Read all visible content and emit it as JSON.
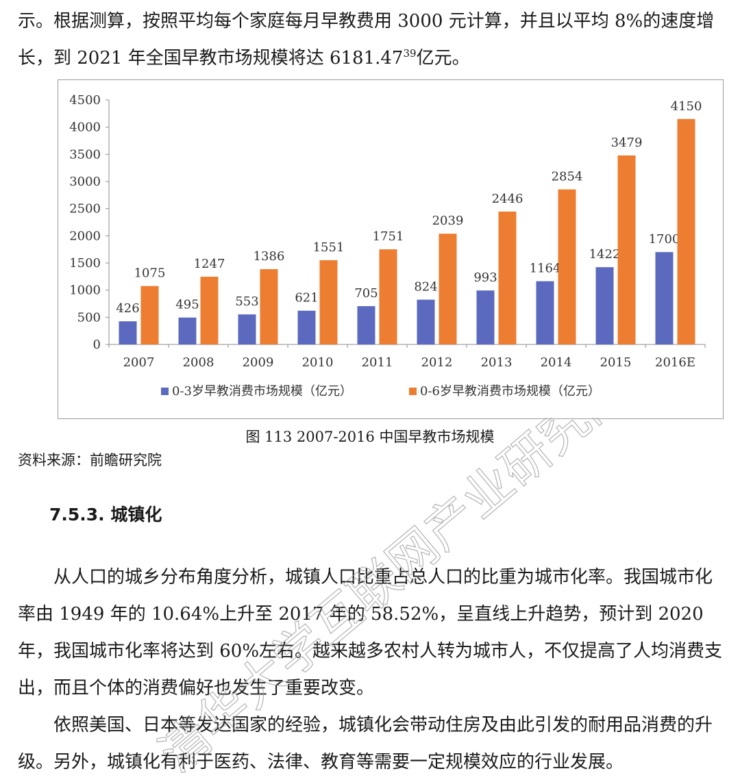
{
  "intro": {
    "text_before_sup": "示。根据测算，按照平均每个家庭每月早教费用 3000 元计算，并且以平均 8%的速度增长，到 2021 年全国早教市场规模将达 6181.47",
    "footnote_ref": "39",
    "text_after_sup": "亿元。"
  },
  "chart_data": {
    "type": "bar",
    "categories": [
      "2007",
      "2008",
      "2009",
      "2010",
      "2011",
      "2012",
      "2013",
      "2014",
      "2015",
      "2016E"
    ],
    "series": [
      {
        "name": "0-3岁早教消费市场规模（亿元）",
        "color": "#5b6abf",
        "values": [
          426,
          495,
          553,
          621,
          705,
          824,
          993,
          1164,
          1422,
          1700
        ]
      },
      {
        "name": "0-6岁早教消费市场规模（亿元）",
        "color": "#ed7d31",
        "values": [
          1075,
          1247,
          1386,
          1551,
          1751,
          2039,
          2446,
          2854,
          3479,
          4150
        ]
      }
    ],
    "ylim": [
      0,
      4500
    ],
    "yticks": [
      "0",
      "500",
      "1000",
      "1500",
      "2000",
      "2500",
      "3000",
      "3500",
      "4000",
      "4500"
    ],
    "grid": false,
    "legend": "bottom",
    "data_labels": true
  },
  "caption": "图 113 2007-2016 中国早教市场规模",
  "source": "资料来源：前瞻研究院",
  "section": {
    "heading": "7.5.3.  城镇化"
  },
  "body": {
    "para1": "从人口的城乡分布角度分析，城镇人口比重占总人口的比重为城市化率。我国城市化率由 1949 年的 10.64%上升至 2017 年的 58.52%，呈直线上升趋势，预计到 2020 年，我国城市化率将达到 60%左右。越来越多农村人转为城市人，不仅提高了人均消费支出，而且个体的消费偏好也发生了重要改变。",
    "para2": "依照美国、日本等发达国家的经验，城镇化会带动住房及由此引发的耐用品消费的升级。另外，城镇化有利于医药、法律、教育等需要一定规模效应的行业发展。"
  },
  "watermark": {
    "text": "清华大学互联网产业研究院"
  }
}
